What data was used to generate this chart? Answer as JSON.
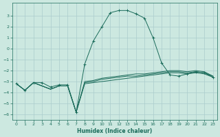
{
  "xlabel": "Humidex (Indice chaleur)",
  "background_color": "#cce8e0",
  "grid_color": "#aacccc",
  "line_color": "#1a6b5a",
  "xlim": [
    -0.5,
    23.5
  ],
  "ylim": [
    -6.5,
    4.2
  ],
  "xticks": [
    0,
    1,
    2,
    3,
    4,
    5,
    6,
    7,
    8,
    9,
    10,
    11,
    12,
    13,
    14,
    15,
    16,
    17,
    18,
    19,
    20,
    21,
    22,
    23
  ],
  "yticks": [
    -6,
    -5,
    -4,
    -3,
    -2,
    -1,
    0,
    1,
    2,
    3
  ],
  "lines": [
    {
      "x": [
        0,
        1,
        2,
        3,
        4,
        5,
        6,
        7,
        8,
        9,
        10,
        11,
        12,
        13,
        14,
        15,
        16,
        17,
        18,
        19,
        20,
        21,
        22,
        23
      ],
      "y": [
        -3.2,
        -3.8,
        -3.1,
        -3.1,
        -3.5,
        -3.3,
        -3.3,
        -5.8,
        -1.4,
        0.7,
        2.0,
        3.3,
        3.5,
        3.5,
        3.2,
        2.8,
        1.0,
        -1.3,
        -2.4,
        -2.5,
        -2.3,
        -2.1,
        -2.2,
        -2.6
      ],
      "marker": "+"
    },
    {
      "x": [
        0,
        1,
        2,
        3,
        4,
        5,
        6,
        7,
        8,
        9,
        10,
        11,
        12,
        13,
        14,
        15,
        16,
        17,
        18,
        19,
        20,
        21,
        22,
        23
      ],
      "y": [
        -3.2,
        -3.8,
        -3.1,
        -3.4,
        -3.7,
        -3.4,
        -3.4,
        -5.8,
        -3.2,
        -3.1,
        -3.0,
        -2.9,
        -2.8,
        -2.7,
        -2.6,
        -2.5,
        -2.4,
        -2.3,
        -2.2,
        -2.2,
        -2.3,
        -2.2,
        -2.3,
        -2.6
      ],
      "marker": null
    },
    {
      "x": [
        0,
        1,
        2,
        3,
        4,
        5,
        6,
        7,
        8,
        9,
        10,
        11,
        12,
        13,
        14,
        15,
        16,
        17,
        18,
        19,
        20,
        21,
        22,
        23
      ],
      "y": [
        -3.2,
        -3.8,
        -3.1,
        -3.4,
        -3.7,
        -3.4,
        -3.4,
        -5.8,
        -3.1,
        -3.0,
        -2.8,
        -2.7,
        -2.6,
        -2.5,
        -2.5,
        -2.4,
        -2.3,
        -2.2,
        -2.1,
        -2.1,
        -2.2,
        -2.1,
        -2.2,
        -2.5
      ],
      "marker": null
    },
    {
      "x": [
        0,
        1,
        2,
        3,
        4,
        5,
        6,
        7,
        8,
        9,
        10,
        11,
        12,
        13,
        14,
        15,
        16,
        17,
        18,
        19,
        20,
        21,
        22,
        23
      ],
      "y": [
        -3.2,
        -3.8,
        -3.1,
        -3.4,
        -3.7,
        -3.4,
        -3.4,
        -5.8,
        -3.0,
        -2.9,
        -2.7,
        -2.6,
        -2.5,
        -2.4,
        -2.3,
        -2.3,
        -2.2,
        -2.1,
        -2.0,
        -2.0,
        -2.1,
        -2.0,
        -2.1,
        -2.5
      ],
      "marker": null
    }
  ]
}
